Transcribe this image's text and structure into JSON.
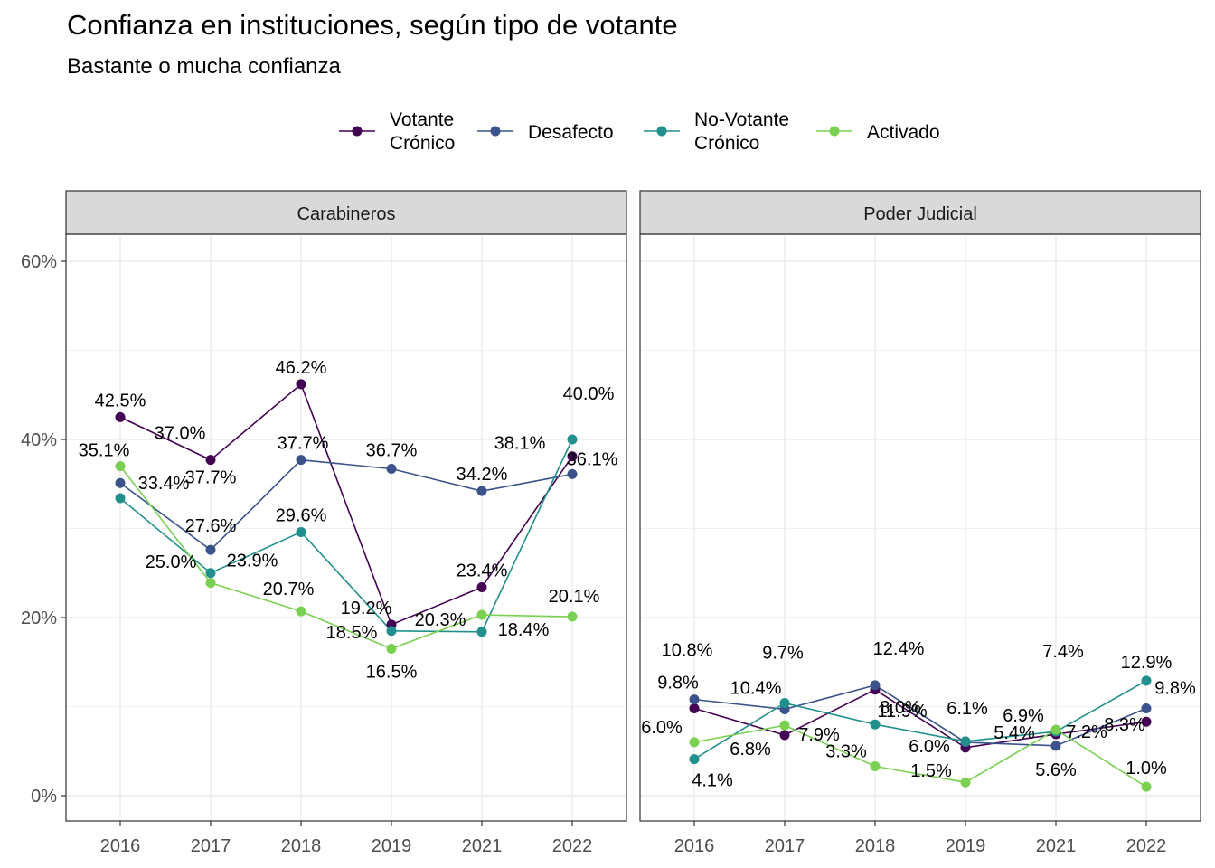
{
  "title": "Confianza en instituciones, según tipo de votante",
  "subtitle": "Bastante o mucha confianza",
  "colors": {
    "Votante Crónico": "#440154",
    "Desafecto": "#3B528B",
    "No-Votante Crónico": "#21908C",
    "Activado": "#7AD151",
    "grid": "#EBEBEB",
    "strip": "#D9D9D9",
    "axis_text": "#4D4D4D"
  },
  "legend": [
    {
      "key": "Votante Crónico",
      "lines": [
        "Votante",
        "Crónico"
      ]
    },
    {
      "key": "Desafecto",
      "lines": [
        "Desafecto"
      ]
    },
    {
      "key": "No-Votante Crónico",
      "lines": [
        "No-Votante",
        "Crónico"
      ]
    },
    {
      "key": "Activado",
      "lines": [
        "Activado"
      ]
    }
  ],
  "chart_data": {
    "type": "line",
    "categories": [
      "2016",
      "2017",
      "2018",
      "2019",
      "2021",
      "2022"
    ],
    "y_ticks": [
      "0%",
      "20%",
      "40%",
      "60%"
    ],
    "ylim": [
      0,
      0.6
    ],
    "grid": true,
    "legend_position": "top",
    "facets": [
      {
        "name": "Carabineros",
        "series": [
          {
            "name": "Votante Crónico",
            "values": [
              42.5,
              37.7,
              46.2,
              19.2,
              23.4,
              38.1
            ],
            "labels": [
              "42.5%",
              "37.7%",
              "46.2%",
              "19.2%",
              "23.4%",
              "38.1%"
            ]
          },
          {
            "name": "Desafecto",
            "values": [
              35.1,
              27.6,
              37.7,
              36.7,
              34.2,
              36.1
            ],
            "labels": [
              "35.1%",
              "27.6%",
              "37.7%",
              "36.7%",
              "34.2%",
              "36.1%"
            ]
          },
          {
            "name": "No-Votante Crónico",
            "values": [
              33.4,
              25.0,
              29.6,
              18.5,
              18.4,
              40.0
            ],
            "labels": [
              "33.4%",
              "25.0%",
              "29.6%",
              "18.5%",
              "18.4%",
              "40.0%"
            ]
          },
          {
            "name": "Activado",
            "values": [
              37.0,
              23.9,
              20.7,
              16.5,
              20.3,
              20.1
            ],
            "labels": [
              "37.0%",
              "23.9%",
              "20.7%",
              "16.5%",
              "20.3%",
              "20.1%"
            ]
          }
        ]
      },
      {
        "name": "Poder Judicial",
        "series": [
          {
            "name": "Votante Crónico",
            "values": [
              9.8,
              6.8,
              11.9,
              5.4,
              6.9,
              8.3
            ],
            "labels": [
              "9.8%",
              "6.8%",
              "11.9%",
              "5.4%",
              "6.9%",
              "8.3%"
            ]
          },
          {
            "name": "Desafecto",
            "values": [
              10.8,
              9.7,
              12.4,
              6.0,
              5.6,
              9.8
            ],
            "labels": [
              "10.8%",
              "9.7%",
              "12.4%",
              "6.0%",
              "5.6%",
              "9.8%"
            ]
          },
          {
            "name": "No-Votante Crónico",
            "values": [
              4.1,
              10.4,
              8.0,
              6.1,
              7.2,
              12.9
            ],
            "labels": [
              "4.1%",
              "10.4%",
              "8.0%",
              "6.1%",
              "7.2%",
              "12.9%"
            ]
          },
          {
            "name": "Activado",
            "values": [
              6.0,
              7.9,
              3.3,
              1.5,
              7.4,
              1.0
            ],
            "labels": [
              "6.0%",
              "7.9%",
              "3.3%",
              "1.5%",
              "7.4%",
              "1.0%"
            ]
          }
        ]
      }
    ]
  }
}
